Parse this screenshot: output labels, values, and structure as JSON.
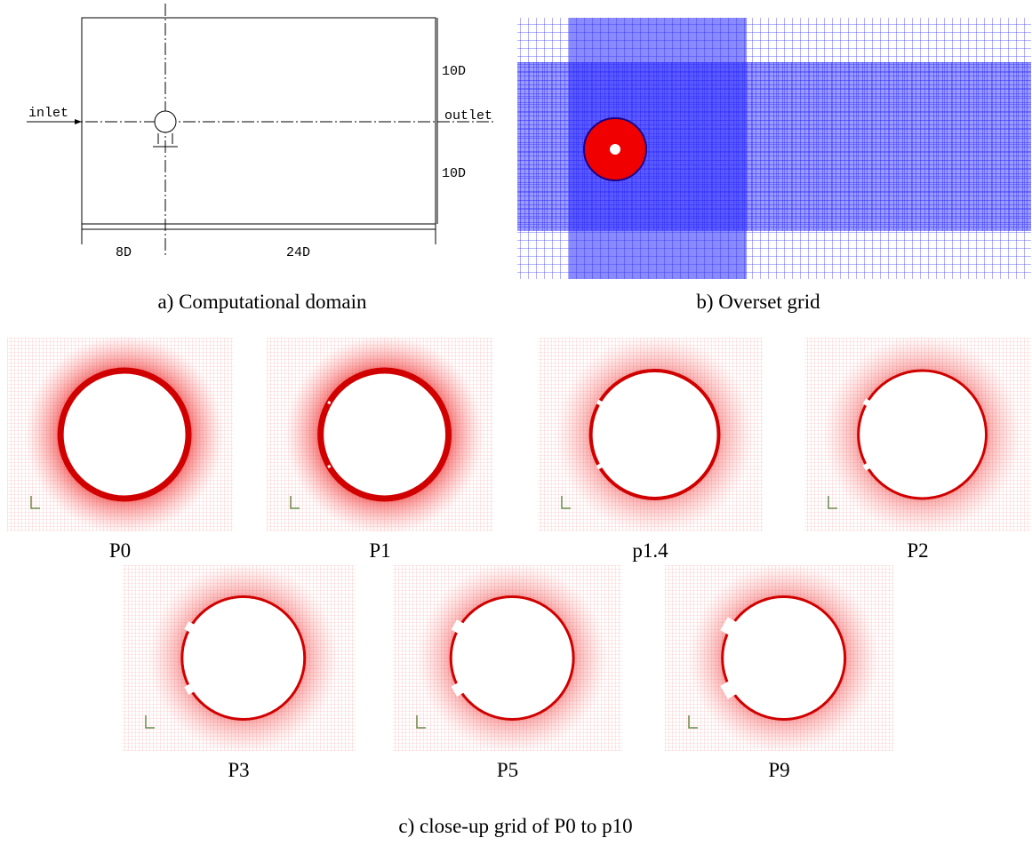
{
  "panel_a": {
    "caption": "a) Computational domain",
    "inlet": "inlet",
    "outlet": "outlet",
    "height_top": "10D",
    "height_bottom": "10D",
    "upstream": "8D",
    "downstream": "24D"
  },
  "panel_b": {
    "caption": "b) Overset grid"
  },
  "panel_c": {
    "caption": "c) close-up grid of P0 to p10",
    "panels": [
      {
        "label": "P0"
      },
      {
        "label": "P1"
      },
      {
        "label": "p1.4"
      },
      {
        "label": "P2"
      },
      {
        "label": "P3"
      },
      {
        "label": "P5"
      },
      {
        "label": "P9"
      }
    ]
  }
}
